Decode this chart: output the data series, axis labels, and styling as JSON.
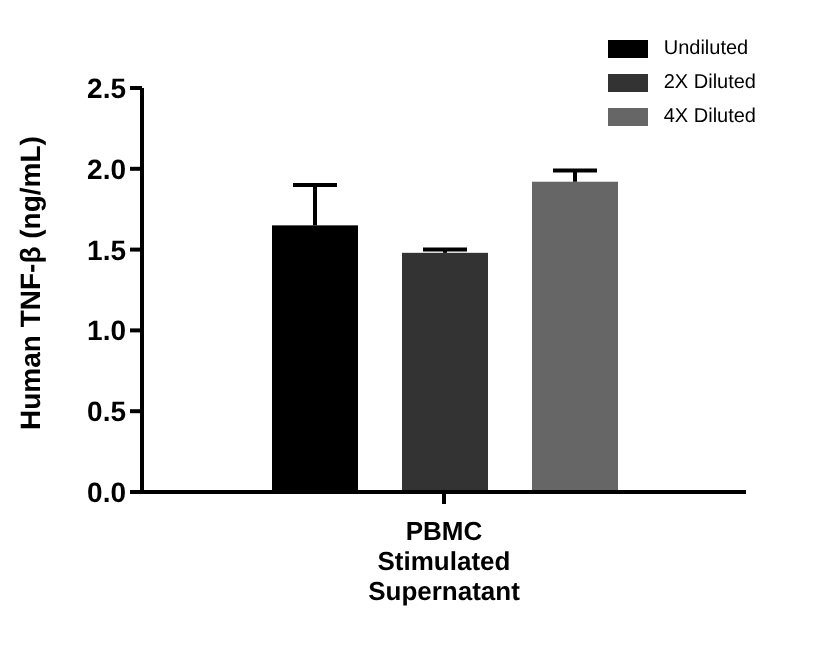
{
  "chart_data": {
    "type": "bar",
    "ylabel": "Human TNF-β (ng/mL)",
    "categories": [
      "PBMC Stimulated Supernatant"
    ],
    "series": [
      {
        "name": "Undiluted",
        "color": "#000000",
        "values": [
          1.65
        ],
        "errors": [
          [
            1.65,
            1.9
          ]
        ]
      },
      {
        "name": "2X Diluted",
        "color": "#333333",
        "values": [
          1.48
        ],
        "errors": [
          [
            1.48,
            1.5
          ]
        ]
      },
      {
        "name": "4X Diluted",
        "color": "#666666",
        "values": [
          1.92
        ],
        "errors": [
          [
            1.92,
            1.99
          ]
        ]
      }
    ],
    "ylim": [
      0,
      2.5
    ],
    "yticks": [
      {
        "value": 0,
        "label": "0.0"
      },
      0.5,
      {
        "value": 1,
        "label": "1.0"
      },
      1.5,
      {
        "value": 2,
        "label": "2.0"
      },
      2.5
    ],
    "grid": false,
    "legend": "top right"
  }
}
